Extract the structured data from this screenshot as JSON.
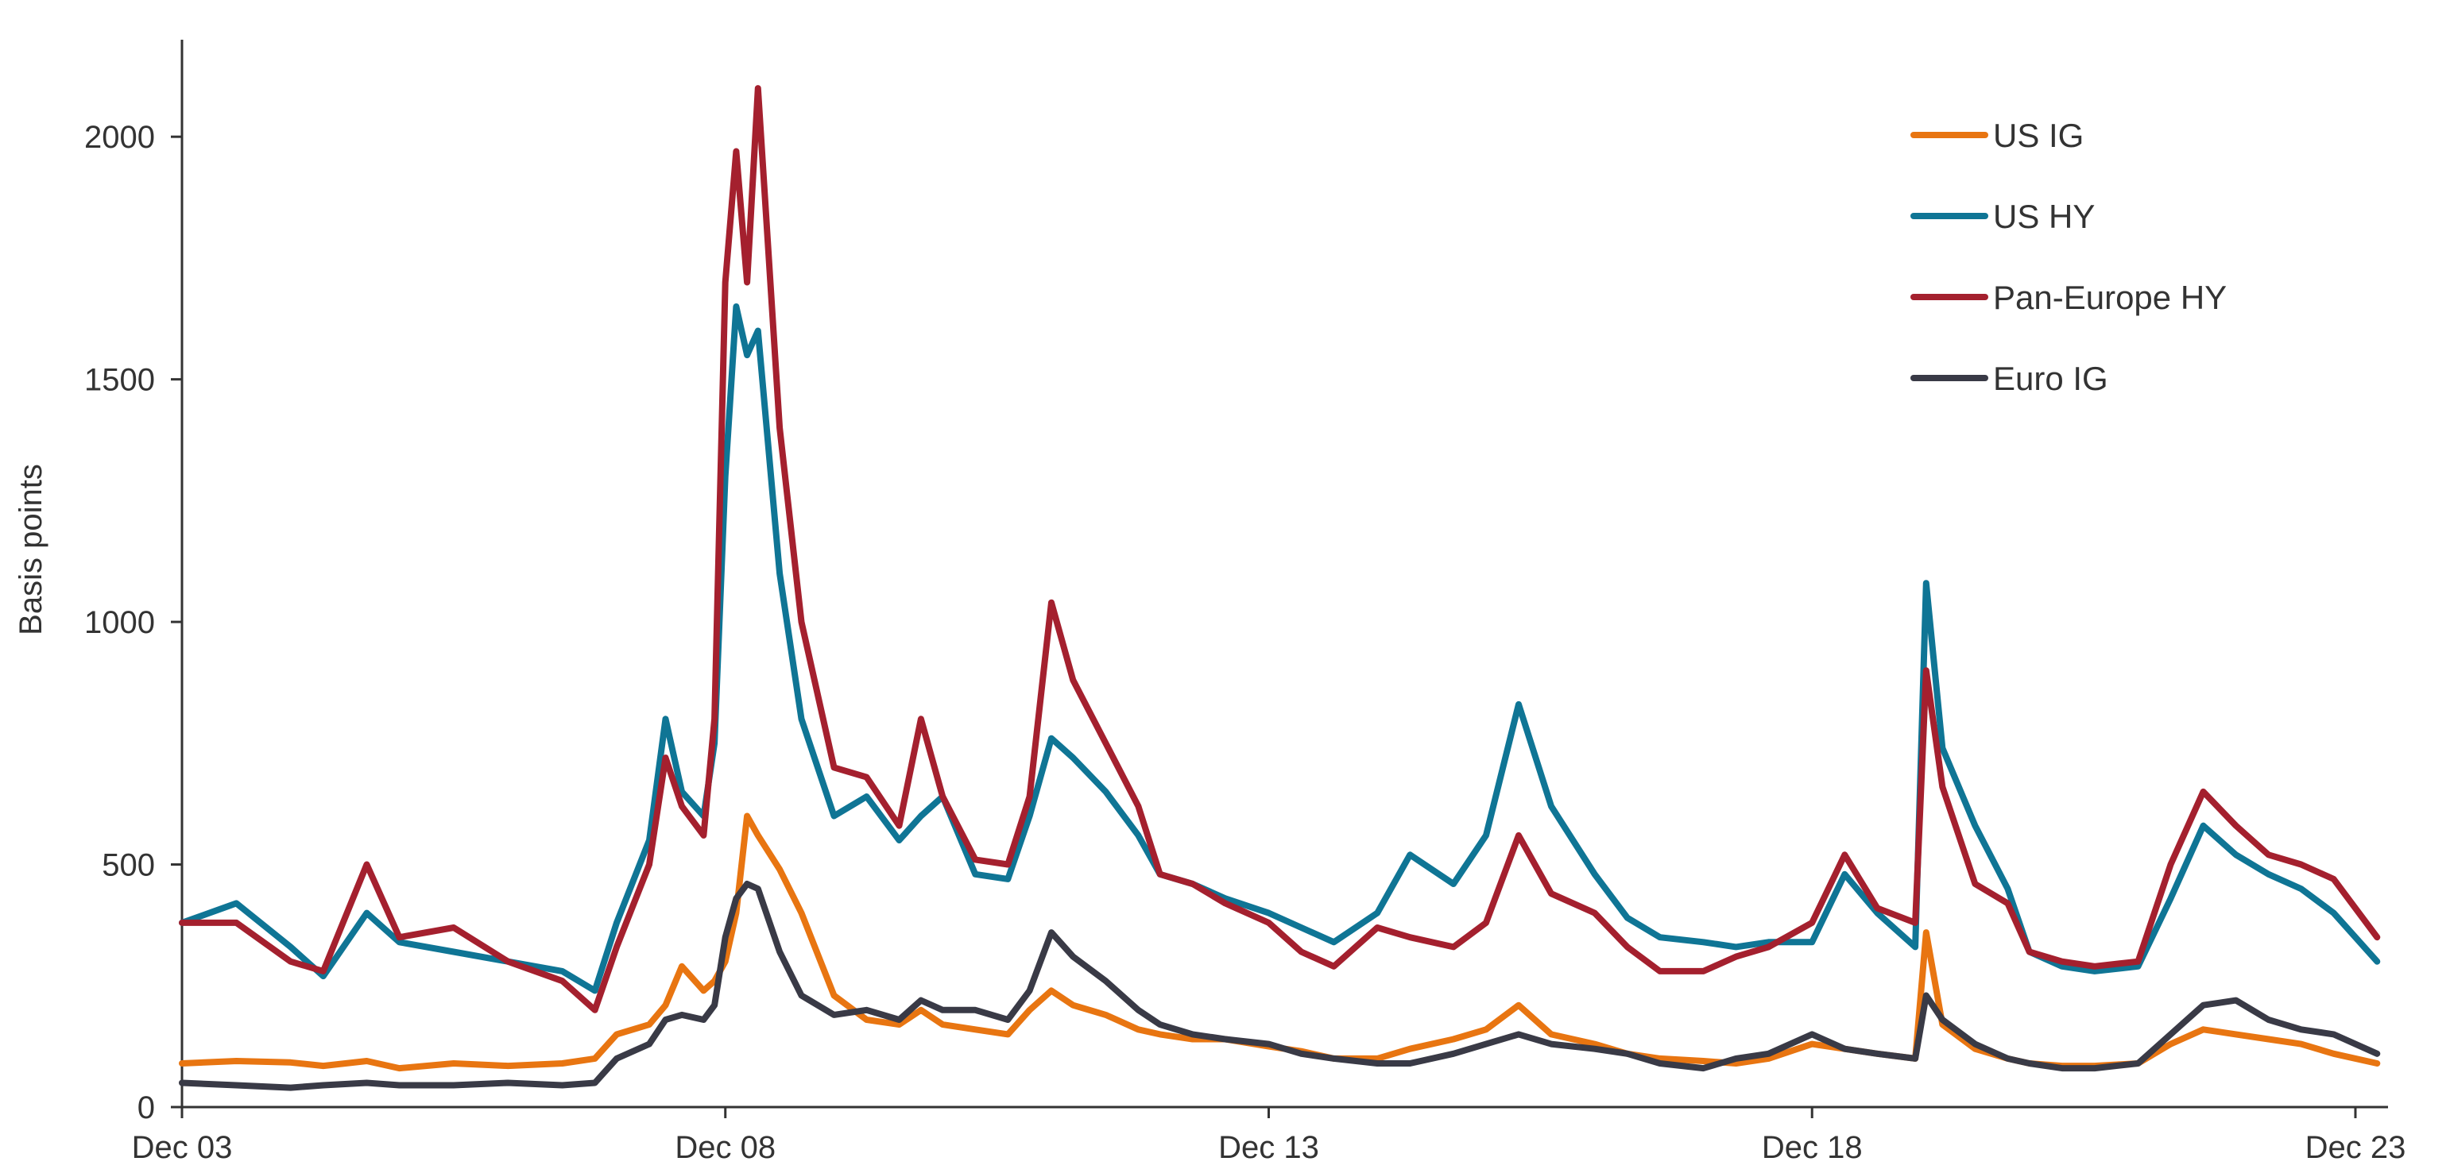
{
  "chart_data": {
    "type": "line",
    "title": "",
    "xlabel": "",
    "ylabel": "Basis points",
    "x_ticks": [
      "Dec 03",
      "Dec 08",
      "Dec 13",
      "Dec 18",
      "Dec 23"
    ],
    "x_tick_days": [
      3,
      8,
      13,
      18,
      23
    ],
    "xlim": [
      3,
      23.3
    ],
    "ylim": [
      0,
      2200
    ],
    "y_ticks": [
      0,
      500,
      1000,
      1500,
      2000
    ],
    "grid": false,
    "legend_position": "top-right",
    "series": [
      {
        "name": "US IG",
        "color": "#E87511",
        "x": [
          3,
          3.5,
          4,
          4.3,
          4.7,
          5,
          5.5,
          6,
          6.5,
          6.8,
          7,
          7.3,
          7.45,
          7.6,
          7.8,
          7.9,
          8.0,
          8.1,
          8.2,
          8.3,
          8.5,
          8.7,
          9,
          9.3,
          9.6,
          9.8,
          10,
          10.3,
          10.6,
          10.8,
          11,
          11.2,
          11.5,
          11.8,
          12,
          12.3,
          12.6,
          13,
          13.3,
          13.6,
          14,
          14.3,
          14.7,
          15,
          15.3,
          15.6,
          16,
          16.3,
          16.6,
          17,
          17.3,
          17.6,
          18,
          18.3,
          18.6,
          18.95,
          19.05,
          19.2,
          19.5,
          19.8,
          20,
          20.3,
          20.6,
          21,
          21.3,
          21.6,
          21.9,
          22.2,
          22.5,
          22.8,
          23.2
        ],
        "y": [
          90,
          95,
          92,
          85,
          95,
          80,
          90,
          85,
          90,
          100,
          150,
          170,
          210,
          290,
          240,
          260,
          300,
          400,
          600,
          560,
          490,
          400,
          230,
          180,
          170,
          200,
          170,
          160,
          150,
          200,
          240,
          210,
          190,
          160,
          150,
          140,
          140,
          125,
          115,
          100,
          100,
          120,
          140,
          160,
          210,
          150,
          130,
          110,
          100,
          95,
          90,
          100,
          130,
          120,
          110,
          100,
          360,
          170,
          120,
          100,
          90,
          85,
          85,
          90,
          130,
          160,
          150,
          140,
          130,
          110,
          90
        ]
      },
      {
        "name": "US HY",
        "color": "#0F7595",
        "x": [
          3,
          3.5,
          4,
          4.3,
          4.7,
          5,
          5.5,
          6,
          6.5,
          6.8,
          7,
          7.3,
          7.45,
          7.6,
          7.8,
          7.9,
          8.0,
          8.1,
          8.2,
          8.3,
          8.5,
          8.7,
          9,
          9.3,
          9.6,
          9.8,
          10,
          10.3,
          10.6,
          10.8,
          11,
          11.2,
          11.5,
          11.8,
          12,
          12.3,
          12.6,
          13,
          13.3,
          13.6,
          14,
          14.3,
          14.7,
          15,
          15.3,
          15.6,
          16,
          16.3,
          16.6,
          17,
          17.3,
          17.6,
          18,
          18.3,
          18.6,
          18.95,
          19.05,
          19.2,
          19.5,
          19.8,
          20,
          20.3,
          20.6,
          21,
          21.3,
          21.6,
          21.9,
          22.2,
          22.5,
          22.8,
          23.2
        ],
        "y": [
          380,
          420,
          330,
          270,
          400,
          340,
          320,
          300,
          280,
          240,
          380,
          550,
          800,
          650,
          600,
          750,
          1300,
          1650,
          1550,
          1600,
          1100,
          800,
          600,
          640,
          550,
          600,
          640,
          480,
          470,
          600,
          760,
          720,
          650,
          560,
          480,
          460,
          430,
          400,
          370,
          340,
          400,
          520,
          460,
          560,
          830,
          620,
          480,
          390,
          350,
          340,
          330,
          340,
          340,
          480,
          400,
          330,
          1080,
          740,
          580,
          450,
          320,
          290,
          280,
          290,
          430,
          580,
          520,
          480,
          450,
          400,
          300
        ]
      },
      {
        "name": "Pan-Europe HY",
        "color": "#A4202E",
        "x": [
          3,
          3.5,
          4,
          4.3,
          4.7,
          5,
          5.5,
          6,
          6.5,
          6.8,
          7,
          7.3,
          7.45,
          7.6,
          7.8,
          7.9,
          8.0,
          8.1,
          8.2,
          8.3,
          8.5,
          8.7,
          9,
          9.3,
          9.6,
          9.8,
          10,
          10.3,
          10.6,
          10.8,
          11,
          11.2,
          11.5,
          11.8,
          12,
          12.3,
          12.6,
          13,
          13.3,
          13.6,
          14,
          14.3,
          14.7,
          15,
          15.3,
          15.6,
          16,
          16.3,
          16.6,
          17,
          17.3,
          17.6,
          18,
          18.3,
          18.6,
          18.95,
          19.05,
          19.2,
          19.5,
          19.8,
          20,
          20.3,
          20.6,
          21,
          21.3,
          21.6,
          21.9,
          22.2,
          22.5,
          22.8,
          23.2
        ],
        "y": [
          380,
          380,
          300,
          280,
          500,
          350,
          370,
          300,
          260,
          200,
          330,
          500,
          720,
          620,
          560,
          800,
          1700,
          1970,
          1700,
          2100,
          1400,
          1000,
          700,
          680,
          580,
          800,
          640,
          510,
          500,
          640,
          1040,
          880,
          750,
          620,
          480,
          460,
          420,
          380,
          320,
          290,
          370,
          350,
          330,
          380,
          560,
          440,
          400,
          330,
          280,
          280,
          310,
          330,
          380,
          520,
          410,
          380,
          900,
          660,
          460,
          420,
          320,
          300,
          290,
          300,
          500,
          650,
          580,
          520,
          500,
          470,
          350
        ]
      },
      {
        "name": "Euro IG",
        "color": "#393A46",
        "x": [
          3,
          3.5,
          4,
          4.3,
          4.7,
          5,
          5.5,
          6,
          6.5,
          6.8,
          7,
          7.3,
          7.45,
          7.6,
          7.8,
          7.9,
          8.0,
          8.1,
          8.2,
          8.3,
          8.5,
          8.7,
          9,
          9.3,
          9.6,
          9.8,
          10,
          10.3,
          10.6,
          10.8,
          11,
          11.2,
          11.5,
          11.8,
          12,
          12.3,
          12.6,
          13,
          13.3,
          13.6,
          14,
          14.3,
          14.7,
          15,
          15.3,
          15.6,
          16,
          16.3,
          16.6,
          17,
          17.3,
          17.6,
          18,
          18.3,
          18.6,
          18.95,
          19.05,
          19.2,
          19.5,
          19.8,
          20,
          20.3,
          20.6,
          21,
          21.3,
          21.6,
          21.9,
          22.2,
          22.5,
          22.8,
          23.2
        ],
        "y": [
          50,
          45,
          40,
          45,
          50,
          45,
          45,
          50,
          45,
          50,
          100,
          130,
          180,
          190,
          180,
          210,
          350,
          430,
          460,
          450,
          320,
          230,
          190,
          200,
          180,
          220,
          200,
          200,
          180,
          240,
          360,
          310,
          260,
          200,
          170,
          150,
          140,
          130,
          110,
          100,
          90,
          90,
          110,
          130,
          150,
          130,
          120,
          110,
          90,
          80,
          100,
          110,
          150,
          120,
          110,
          100,
          230,
          180,
          130,
          100,
          90,
          80,
          80,
          90,
          150,
          210,
          220,
          180,
          160,
          150,
          110
        ]
      }
    ]
  }
}
